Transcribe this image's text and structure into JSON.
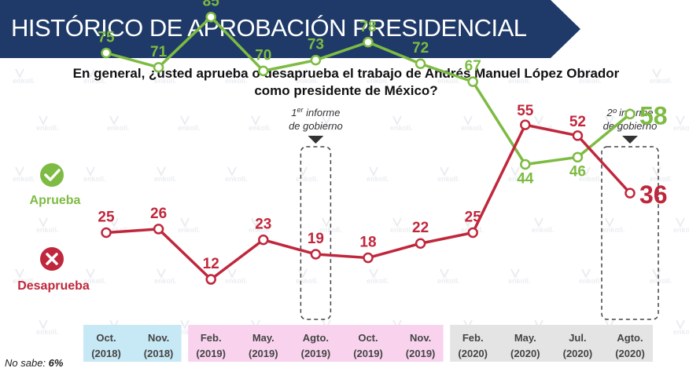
{
  "header": {
    "title": "HISTÓRICO DE APROBACIÓN PRESIDENCIAL"
  },
  "question": {
    "line1": "En general, ¿usted aprueba o desaprueba el trabajo de Andrés Manuel López Obrador",
    "line2": "como presidente de México?"
  },
  "footer": {
    "no_sabe_label": "No sabe: ",
    "no_sabe_value": "6%"
  },
  "watermark": "enkoll.",
  "chart_data": {
    "type": "line",
    "categories": [
      {
        "month": "Oct.",
        "year": "(2018)"
      },
      {
        "month": "Nov.",
        "year": "(2018)"
      },
      {
        "month": "Feb.",
        "year": "(2019)"
      },
      {
        "month": "May.",
        "year": "(2019)"
      },
      {
        "month": "Agto.",
        "year": "(2019)"
      },
      {
        "month": "Oct.",
        "year": "(2019)"
      },
      {
        "month": "Nov.",
        "year": "(2019)"
      },
      {
        "month": "Feb.",
        "year": "(2020)"
      },
      {
        "month": "May.",
        "year": "(2020)"
      },
      {
        "month": "Jul.",
        "year": "(2020)"
      },
      {
        "month": "Agto.",
        "year": "(2020)"
      }
    ],
    "category_groups": [
      {
        "start": 0,
        "end": 1,
        "color": "#c7e8f5"
      },
      {
        "start": 2,
        "end": 6,
        "color": "#f9d3ee"
      },
      {
        "start": 7,
        "end": 10,
        "color": "#e4e4e4"
      }
    ],
    "series": [
      {
        "name": "Aprueba",
        "color": "#7dbb42",
        "values": [
          75,
          71,
          85,
          70,
          73,
          78,
          72,
          67,
          44,
          46,
          58
        ]
      },
      {
        "name": "Desaprueba",
        "color": "#c0273c",
        "values": [
          25,
          26,
          12,
          23,
          19,
          18,
          22,
          25,
          55,
          52,
          36
        ]
      }
    ],
    "annotations": [
      {
        "index": 4,
        "line1_base": "1",
        "line1_sup": "er",
        "line1_rest": " informe",
        "line2": "de gobierno"
      },
      {
        "index": 10,
        "line1_base": "2º informe",
        "line1_sup": "",
        "line1_rest": "",
        "line2": "de gobierno"
      }
    ]
  }
}
